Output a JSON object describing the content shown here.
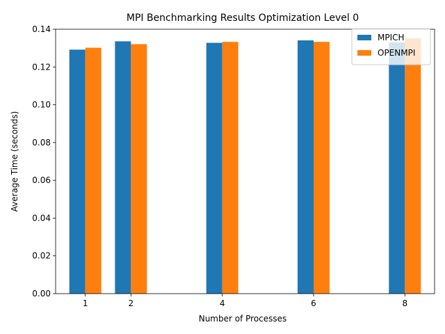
{
  "chart_data": {
    "type": "bar",
    "title": "MPI Benchmarking Results Optimization Level 0",
    "xlabel": "Number of Processes",
    "ylabel": "Average Time (seconds)",
    "x": [
      1,
      2,
      4,
      6,
      8
    ],
    "xticks": [
      "1",
      "2",
      "4",
      "6",
      "8"
    ],
    "ylim": [
      0,
      0.14
    ],
    "yticks": [
      "0.00",
      "0.02",
      "0.04",
      "0.06",
      "0.08",
      "0.10",
      "0.12",
      "0.14"
    ],
    "series": [
      {
        "name": "MPICH",
        "color": "#1f77b4",
        "values": [
          0.1292,
          0.1336,
          0.1328,
          0.1341,
          0.133
        ]
      },
      {
        "name": "OPENMPI",
        "color": "#ff7f0e",
        "values": [
          0.1302,
          0.1321,
          0.1333,
          0.1333,
          0.1352
        ]
      }
    ],
    "grid": false,
    "legend": "top-right"
  }
}
